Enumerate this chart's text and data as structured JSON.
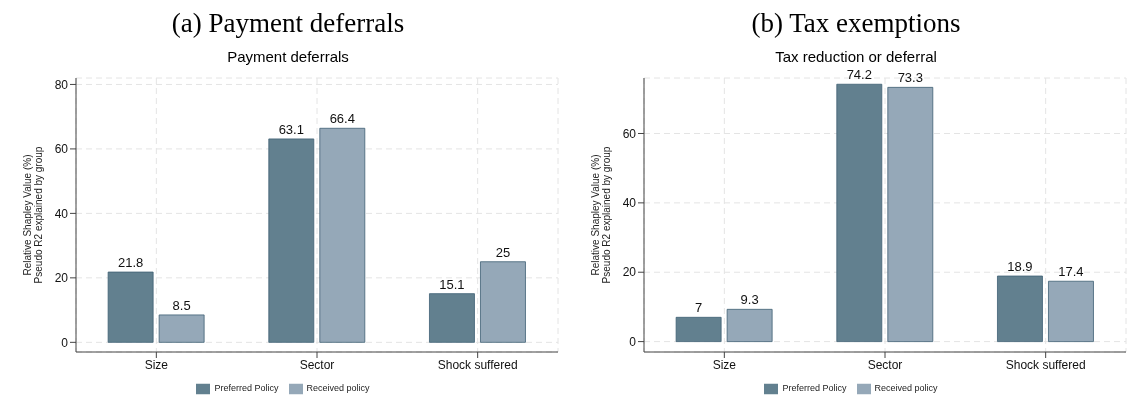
{
  "chart_data": [
    {
      "type": "bar",
      "title": "(a)  Payment deferrals",
      "subtitle": "Payment deferrals",
      "ylabel": "Relative Shapley Value (%)\nPseudo R2 explained by group",
      "categories": [
        "Size",
        "Sector",
        "Shock suffered"
      ],
      "series": [
        {
          "name": "Preferred Policy",
          "color": "#62808f",
          "values": [
            21.8,
            63.1,
            15.1
          ]
        },
        {
          "name": "Received policy",
          "color": "#95a8b8",
          "values": [
            8.5,
            66.4,
            25
          ]
        }
      ],
      "ylim": [
        -3,
        82
      ],
      "yticks": [
        0,
        20,
        40,
        60,
        80
      ],
      "grid": true,
      "legend": "bottom",
      "data_labels": true
    },
    {
      "type": "bar",
      "title": "(b)  Tax exemptions",
      "subtitle": "Tax reduction or deferral",
      "ylabel": "Relative Shapley Value (%)\nPseudo R2 explained by group",
      "categories": [
        "Size",
        "Sector",
        "Shock suffered"
      ],
      "series": [
        {
          "name": "Preferred Policy",
          "color": "#62808f",
          "values": [
            7,
            74.2,
            18.9
          ]
        },
        {
          "name": "Received policy",
          "color": "#95a8b8",
          "values": [
            9.3,
            73.3,
            17.4
          ]
        }
      ],
      "ylim": [
        -3,
        76
      ],
      "yticks": [
        0,
        20,
        40,
        60
      ],
      "grid": true,
      "legend": "bottom",
      "data_labels": true
    }
  ]
}
